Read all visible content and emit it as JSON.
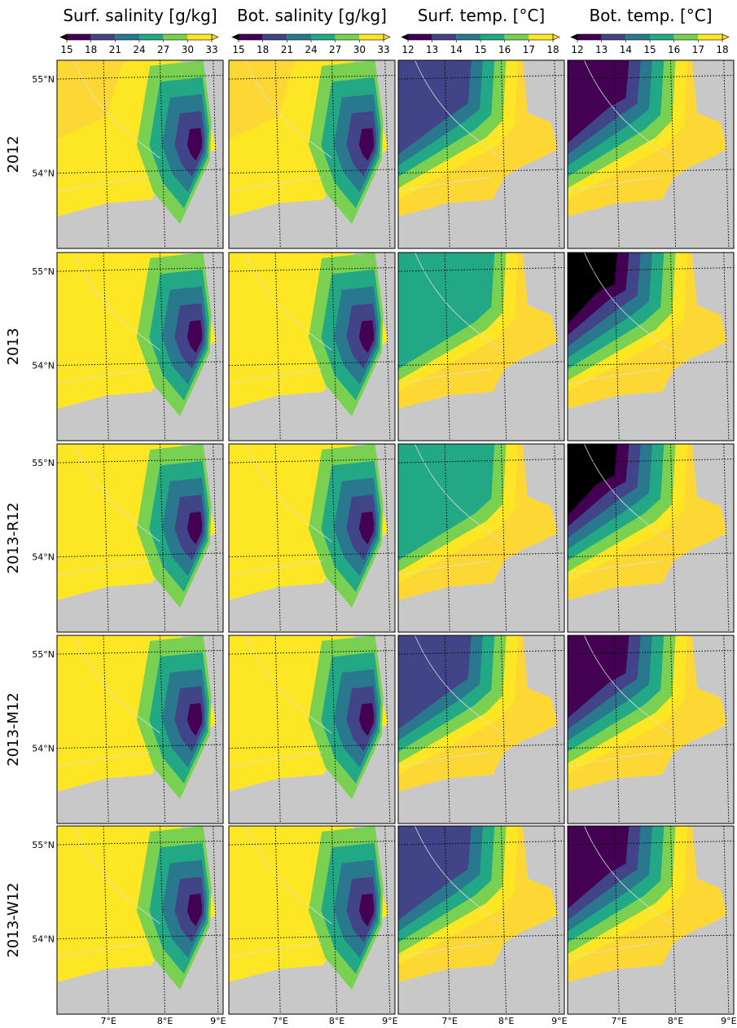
{
  "columns": [
    {
      "title": "Surf. salinity [g/kg]",
      "ticks": [
        15,
        18,
        21,
        24,
        27,
        30,
        33
      ]
    },
    {
      "title": "Bot. salinity [g/kg]",
      "ticks": [
        15,
        18,
        21,
        24,
        27,
        30,
        33
      ]
    },
    {
      "title": "Surf. temp. [°C]",
      "ticks": [
        12,
        13,
        14,
        15,
        16,
        17,
        18
      ]
    },
    {
      "title": "Bot. temp. [°C]",
      "ticks": [
        12,
        13,
        14,
        15,
        16,
        17,
        18
      ]
    }
  ],
  "colormap": [
    "#440154",
    "#414487",
    "#2a788e",
    "#22a884",
    "#7ad151",
    "#fde725"
  ],
  "under_color": "#000000",
  "over_color": "#fdd835",
  "rows": [
    "2012",
    "2013",
    "2013-R12",
    "2013-M12",
    "2013-W12"
  ],
  "lat_labels": [
    "55°N",
    "54°N"
  ],
  "lon_labels": [
    "7°E",
    "8°E",
    "9°E"
  ]
}
